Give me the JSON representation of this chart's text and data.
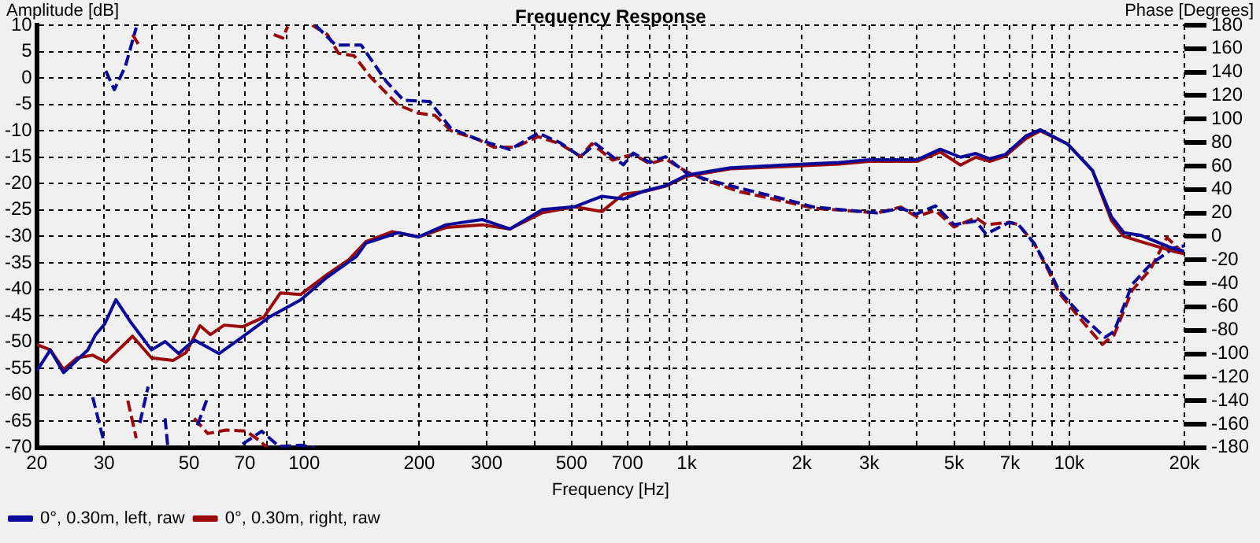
{
  "chart_data": {
    "type": "line",
    "title": "Frequency Response",
    "xlabel": "Frequency [Hz]",
    "ylabel": "Amplitude [dB]",
    "y2label": "Phase [Degrees]",
    "log": "x",
    "grid": true,
    "legend": "bottom left",
    "xlim": [
      20,
      20000
    ],
    "xticks": [
      20,
      30,
      {
        "value": 40,
        "label": null
      },
      50,
      {
        "value": 60,
        "label": null
      },
      70,
      {
        "value": 80,
        "label": null
      },
      {
        "value": 90,
        "label": null
      },
      100,
      200,
      300,
      {
        "value": 400,
        "label": null
      },
      500,
      {
        "value": 600,
        "label": null
      },
      700,
      {
        "value": 800,
        "label": null
      },
      {
        "value": 900,
        "label": null
      },
      {
        "value": 1000,
        "label": "1k"
      },
      {
        "value": 2000,
        "label": "2k"
      },
      {
        "value": 3000,
        "label": "3k"
      },
      {
        "value": 4000,
        "label": null
      },
      {
        "value": 5000,
        "label": "5k"
      },
      {
        "value": 6000,
        "label": null
      },
      {
        "value": 7000,
        "label": "7k"
      },
      {
        "value": 8000,
        "label": null
      },
      {
        "value": 9000,
        "label": null
      },
      {
        "value": 10000,
        "label": "10k"
      },
      {
        "value": 20000,
        "label": "20k"
      }
    ],
    "ylim": [
      -70,
      10
    ],
    "yticks": [
      -70,
      -65,
      -60,
      -55,
      -50,
      -45,
      -40,
      -35,
      -30,
      -25,
      -20,
      -15,
      -10,
      -5,
      0,
      5,
      10
    ],
    "y2lim": [
      -180,
      180
    ],
    "y2ticks": [
      -180,
      -160,
      -140,
      -120,
      -100,
      -80,
      -60,
      -40,
      -20,
      0,
      20,
      40,
      60,
      80,
      100,
      120,
      140,
      160,
      180
    ],
    "series": [
      {
        "name": "0°, 0.30m, left, raw",
        "color": "#0a0a9a",
        "x": [
          20,
          21.7,
          23.5,
          27.2,
          28.5,
          30.1,
          32.2,
          35.1,
          39.9,
          43.3,
          47,
          51.6,
          59.9,
          69.1,
          81,
          98,
          115,
          137,
          145,
          176,
          199,
          235,
          292,
          345,
          420,
          509,
          600,
          683,
          775,
          880,
          1000,
          1300,
          1790,
          2500,
          3000,
          4000,
          4600,
          5200,
          5700,
          6200,
          6800,
          7700,
          8400,
          9900,
          11500,
          12900,
          13900,
          15400,
          18700,
          20000
        ],
        "values": [
          -55.5,
          -51.5,
          -55.8,
          -51.5,
          -48.6,
          -46.6,
          -42,
          -46.1,
          -51.5,
          -49.9,
          -52.2,
          -49.6,
          -52.2,
          -49,
          -45.3,
          -42,
          -37.7,
          -33.8,
          -31.3,
          -29.3,
          -30.1,
          -27.8,
          -26.8,
          -28.6,
          -24.9,
          -24.4,
          -22.4,
          -22.9,
          -21.4,
          -20.4,
          -18.4,
          -17,
          -16.5,
          -16,
          -15.5,
          -15.5,
          -13.5,
          -15,
          -14.3,
          -15.3,
          -14.5,
          -11,
          -9.8,
          -12.5,
          -17.5,
          -26.3,
          -29.3,
          -29.8,
          -32.3,
          -32.8
        ]
      },
      {
        "name": "0°, 0.30m, right, raw",
        "color": "#9a0a0a",
        "x": [
          20,
          21.7,
          23.5,
          25.5,
          28,
          30.3,
          35.6,
          39.9,
          45.4,
          49.1,
          53.4,
          56.9,
          61.8,
          69.1,
          78.4,
          86.7,
          98,
          115,
          131,
          145,
          170,
          199,
          235,
          292,
          345,
          420,
          509,
          600,
          683,
          775,
          880,
          1000,
          1300,
          1790,
          2500,
          3000,
          4000,
          4600,
          5200,
          5700,
          6200,
          6800,
          7700,
          8400,
          9900,
          11500,
          12900,
          13900,
          15400,
          18700,
          20000
        ],
        "values": [
          -50.5,
          -51.5,
          -55.2,
          -53,
          -52.5,
          -53.8,
          -48.9,
          -53,
          -53.5,
          -52,
          -46.9,
          -48.6,
          -46.8,
          -47.1,
          -45.3,
          -40.7,
          -41,
          -37.2,
          -34.4,
          -31,
          -29.1,
          -30.1,
          -28.3,
          -27.8,
          -28.6,
          -25.5,
          -24.4,
          -25.3,
          -22,
          -21.5,
          -20.5,
          -18.6,
          -17.2,
          -16.8,
          -16.3,
          -15.8,
          -15.8,
          -14,
          -16.5,
          -15,
          -15.8,
          -14.8,
          -11.5,
          -10,
          -12.5,
          -17.5,
          -27,
          -30,
          -31,
          -32.8,
          -33.3
        ]
      },
      {
        "color": "#0a0a9a",
        "axis": "y2",
        "line_style": "dashed",
        "x": [
          28,
          29.8
        ],
        "values": [
          -137,
          -172
        ]
      },
      {
        "color": "#0a0a9a",
        "axis": "y2",
        "line_style": "dashed",
        "x": [
          30.3,
          31.9,
          34.1,
          36.4
        ],
        "values": [
          141,
          125,
          145,
          178
        ]
      },
      {
        "color": "#0a0a9a",
        "axis": "y2",
        "line_style": "dashed",
        "x": [
          37.2,
          39.1
        ],
        "values": [
          -159,
          -128
        ]
      },
      {
        "color": "#0a0a9a",
        "axis": "y2",
        "line_style": "dashed",
        "x": [
          43.3,
          44
        ],
        "values": [
          -155,
          -179
        ]
      },
      {
        "color": "#0a0a9a",
        "axis": "y2",
        "line_style": "dashed",
        "x": [
          52.6,
          56
        ],
        "values": [
          -161,
          -137
        ]
      },
      {
        "color": "#0a0a9a",
        "axis": "y2",
        "line_style": "dashed",
        "x": [
          69,
          77.5,
          86,
          98,
          107
        ],
        "values": [
          -177,
          -166,
          -179,
          -178,
          -180
        ]
      },
      {
        "color": "#0a0a9a",
        "axis": "y2",
        "line_style": "dashed",
        "x": [
          107,
          121,
          141,
          164,
          182,
          213,
          242,
          283,
          345,
          409,
          466,
          528,
          578,
          683,
          725,
          801,
          880,
          1000,
          1140,
          1380,
          1790,
          2150,
          3150,
          3630,
          3980,
          4470,
          5000,
          5700,
          6060,
          6970,
          7370,
          8100,
          8850,
          9400,
          10800,
          12400,
          13100,
          14600,
          16300,
          18700,
          20000
        ],
        "values": [
          180,
          163,
          163,
          132,
          116,
          115,
          92,
          83,
          74,
          88,
          80,
          68,
          79,
          61,
          71,
          63,
          68,
          54,
          48,
          41,
          32,
          25,
          20,
          24,
          19,
          26,
          10,
          13,
          2,
          12,
          10,
          -6,
          -28,
          -46,
          -68,
          -86,
          -81,
          -41,
          -24,
          -10,
          -8
        ]
      },
      {
        "color": "#9a0a0a",
        "axis": "y2",
        "line_style": "dashed",
        "x": [
          34.6,
          36.4
        ],
        "values": [
          -140,
          -172
        ]
      },
      {
        "color": "#9a0a0a",
        "axis": "y2",
        "line_style": "dashed",
        "x": [
          35.6,
          37
        ],
        "values": [
          172,
          163
        ]
      },
      {
        "color": "#9a0a0a",
        "axis": "y2",
        "line_style": "dashed",
        "x": [
          51.6,
          56,
          62.5,
          70.5,
          76.5,
          80
        ],
        "values": [
          -155,
          -168,
          -165,
          -166,
          -174,
          -180
        ]
      },
      {
        "color": "#9a0a0a",
        "axis": "y2",
        "line_style": "dashed",
        "x": [
          83.3,
          87.9,
          90.6
        ],
        "values": [
          172,
          169,
          179
        ]
      },
      {
        "color": "#9a0a0a",
        "axis": "y2",
        "line_style": "dashed",
        "x": [
          105,
          115,
          123,
          135,
          149,
          176,
          199,
          220,
          242,
          283,
          313,
          356,
          409,
          466,
          528,
          565,
          640,
          725,
          801,
          880,
          1000,
          1140,
          1380,
          1790,
          2150,
          3150,
          3630,
          3980,
          4470,
          5000,
          5700,
          6060,
          6970,
          7370,
          8100,
          8850,
          9400,
          10800,
          12200,
          13100,
          14600,
          16300,
          18000,
          20000
        ],
        "values": [
          180,
          172,
          156,
          154,
          136,
          112,
          105,
          103,
          90,
          83,
          76,
          76,
          85,
          79,
          68,
          79,
          65,
          70,
          62,
          66,
          55,
          47,
          38,
          30,
          24,
          20,
          25,
          17,
          22,
          8,
          16,
          10,
          12,
          10,
          -6,
          -30,
          -48,
          -72,
          -92,
          -84,
          -46,
          -28,
          -1,
          -15
        ]
      }
    ]
  }
}
